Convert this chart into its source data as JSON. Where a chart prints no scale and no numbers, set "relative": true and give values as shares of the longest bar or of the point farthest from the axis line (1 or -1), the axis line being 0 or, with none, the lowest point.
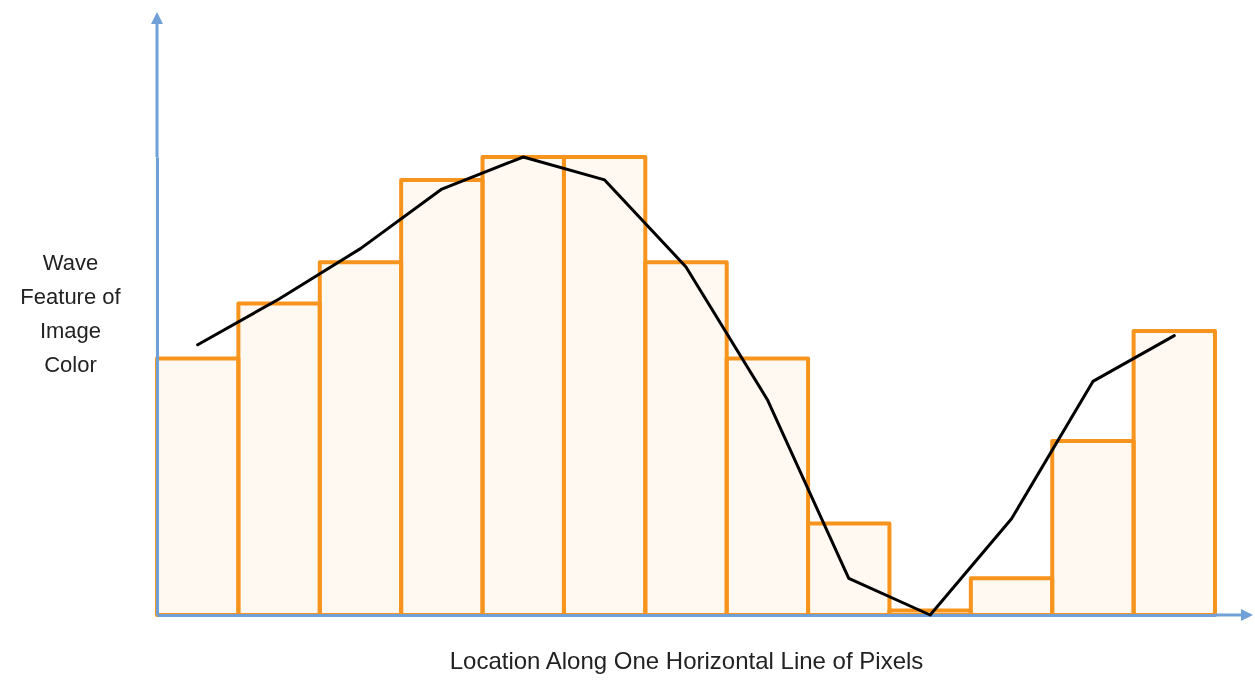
{
  "chart_data": [
    {
      "type": "bar",
      "relative": true,
      "xlabel": "Location Along One Horizontal Line of Pixels",
      "ylabel": "Wave Feature of Image Color",
      "categories": [
        null,
        null,
        null,
        null,
        null,
        null,
        null,
        null,
        null,
        null,
        null,
        null,
        null
      ],
      "series": [
        {
          "color": "#f7941d",
          "values": [
            0.56,
            0.68,
            0.77,
            0.95,
            1,
            1,
            0.77,
            0.56,
            0.2,
            0.01,
            0.08,
            0.38,
            0.62
          ]
        }
      ]
    },
    {
      "type": "line",
      "relative": true,
      "categories": [
        null,
        null,
        null,
        null,
        null,
        null,
        null,
        null,
        null,
        null,
        null,
        null,
        null
      ],
      "series": [
        {
          "color": "#000000",
          "values": [
            0.59,
            0.69,
            0.8,
            0.93,
            1,
            0.95,
            0.76,
            0.47,
            0.08,
            0,
            0.21,
            0.51,
            0.61
          ]
        }
      ]
    }
  ]
}
